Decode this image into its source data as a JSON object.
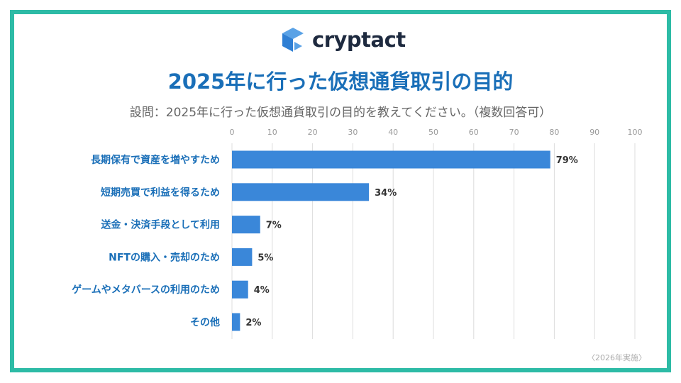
{
  "brand": {
    "name": "cryptact",
    "colors": {
      "frame": "#2dbba6",
      "bar": "#3a87d9",
      "title": "#1a6fb8"
    }
  },
  "title": "2025年に行った仮想通貨取引の目的",
  "subtitle": "設問：2025年に行った仮想通貨取引の目的を教えてください。（複数回答可）",
  "note": "〈2026年実施〉",
  "chart_data": {
    "type": "bar",
    "orientation": "horizontal",
    "categories": [
      "長期保有で資産を増やすため",
      "短期売買で利益を得るため",
      "送金・決済手段として利用",
      "NFTの購入・売却のため",
      "ゲームやメタバースの利用のため",
      "その他"
    ],
    "values": [
      79,
      34,
      7,
      5,
      4,
      2
    ],
    "data_labels": [
      "79%",
      "34%",
      "7%",
      "5%",
      "4%",
      "2%"
    ],
    "xlim": [
      0,
      100
    ],
    "xticks": [
      0,
      10,
      20,
      30,
      40,
      50,
      60,
      70,
      80,
      90,
      100
    ],
    "axis_position": "top",
    "grid": true,
    "bar_color": "#3a87d9"
  }
}
